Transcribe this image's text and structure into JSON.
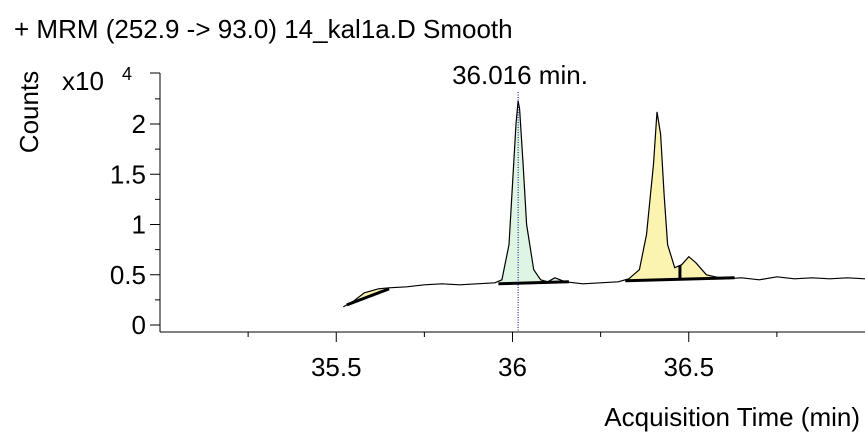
{
  "chart_data": {
    "type": "line",
    "title": "+ MRM (252.9 -> 93.0) 14_kal1a.D  Smooth",
    "ylabel": "Counts",
    "yexponent_base": "x10",
    "yexponent_power": "4",
    "xlabel": "Acquisition Time (min)",
    "annotation": "36.016 min.",
    "marker_x": 36.016,
    "xlim": [
      35.0,
      37.0
    ],
    "ylim": [
      0,
      2.55
    ],
    "xticks": [
      35.5,
      36,
      36.5
    ],
    "xtick_labels": [
      "35.5",
      "36",
      "36.5"
    ],
    "yticks": [
      0,
      0.5,
      1,
      1.5,
      2
    ],
    "ytick_labels": [
      "0",
      "0.5",
      "1",
      "1.5",
      "2"
    ],
    "grid": false,
    "colors": {
      "line": "#000000",
      "peak_selected": "#dff5e3",
      "peak_other": "#fbf4b0",
      "marker": "#000080"
    },
    "series": [
      {
        "points": [
          [
            35.52,
            0.18
          ],
          [
            35.55,
            0.24
          ],
          [
            35.58,
            0.32
          ],
          [
            35.62,
            0.36
          ],
          [
            35.65,
            0.37
          ],
          [
            35.7,
            0.38
          ],
          [
            35.75,
            0.4
          ],
          [
            35.8,
            0.41
          ],
          [
            35.85,
            0.4
          ],
          [
            35.9,
            0.41
          ],
          [
            35.95,
            0.42
          ],
          [
            35.97,
            0.45
          ],
          [
            35.99,
            0.8
          ],
          [
            36.0,
            1.4
          ],
          [
            36.01,
            2.0
          ],
          [
            36.016,
            2.23
          ],
          [
            36.02,
            2.15
          ],
          [
            36.03,
            1.6
          ],
          [
            36.04,
            1.0
          ],
          [
            36.06,
            0.55
          ],
          [
            36.08,
            0.45
          ],
          [
            36.1,
            0.43
          ],
          [
            36.12,
            0.47
          ],
          [
            36.15,
            0.43
          ],
          [
            36.2,
            0.41
          ],
          [
            36.25,
            0.42
          ],
          [
            36.3,
            0.43
          ],
          [
            36.33,
            0.46
          ],
          [
            36.36,
            0.55
          ],
          [
            36.38,
            0.9
          ],
          [
            36.4,
            1.6
          ],
          [
            36.41,
            2.12
          ],
          [
            36.42,
            1.9
          ],
          [
            36.43,
            1.3
          ],
          [
            36.44,
            0.8
          ],
          [
            36.46,
            0.57
          ],
          [
            36.48,
            0.6
          ],
          [
            36.5,
            0.68
          ],
          [
            36.52,
            0.62
          ],
          [
            36.55,
            0.5
          ],
          [
            36.6,
            0.46
          ],
          [
            36.65,
            0.47
          ],
          [
            36.7,
            0.45
          ],
          [
            36.75,
            0.48
          ],
          [
            36.8,
            0.46
          ],
          [
            36.85,
            0.47
          ],
          [
            36.9,
            0.46
          ],
          [
            36.95,
            0.47
          ],
          [
            37.0,
            0.46
          ]
        ]
      }
    ],
    "peaks": [
      {
        "start": 35.53,
        "end": 35.65,
        "base_start": 0.2,
        "base_end": 0.36,
        "fill": "peak_other",
        "split": null
      },
      {
        "start": 35.96,
        "end": 36.16,
        "base_start": 0.41,
        "base_end": 0.43,
        "fill": "peak_selected",
        "split": null
      },
      {
        "start": 36.32,
        "end": 36.63,
        "base_start": 0.44,
        "base_end": 0.47,
        "fill": "peak_other",
        "split": 36.475
      }
    ]
  }
}
